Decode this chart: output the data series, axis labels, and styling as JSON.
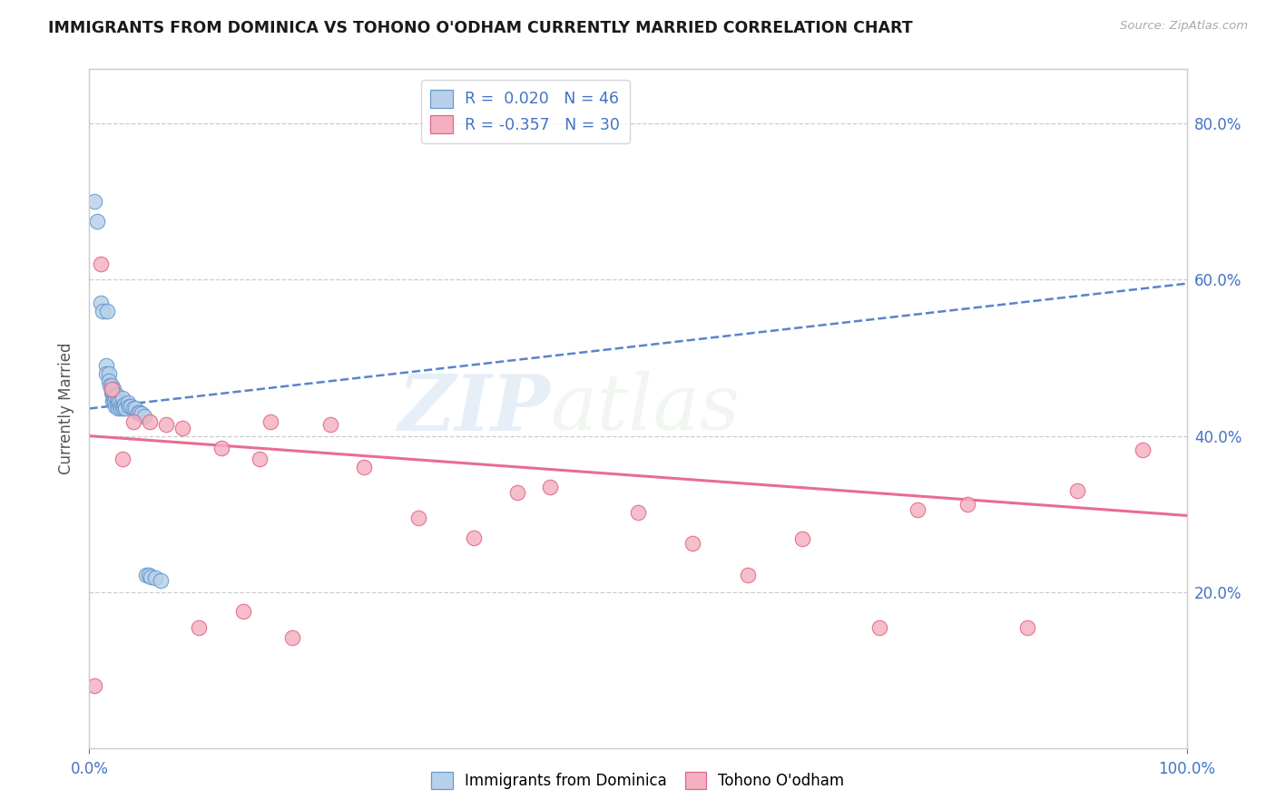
{
  "title": "IMMIGRANTS FROM DOMINICA VS TOHONO O'ODHAM CURRENTLY MARRIED CORRELATION CHART",
  "source": "Source: ZipAtlas.com",
  "ylabel": "Currently Married",
  "xlim": [
    0.0,
    1.0
  ],
  "ylim": [
    0.0,
    0.87
  ],
  "ytick_positions": [
    0.2,
    0.4,
    0.6,
    0.8
  ],
  "ytick_labels": [
    "20.0%",
    "40.0%",
    "60.0%",
    "80.0%"
  ],
  "xtick_positions": [
    0.0,
    1.0
  ],
  "xtick_labels": [
    "0.0%",
    "100.0%"
  ],
  "dominica_R": 0.02,
  "dominica_N": 46,
  "tohono_R": -0.357,
  "tohono_N": 30,
  "dominica_face": "#b8d0ea",
  "dominica_edge": "#6699cc",
  "tohono_face": "#f4b0c0",
  "tohono_edge": "#e06888",
  "dominica_line_color": "#4472c4",
  "tohono_line_color": "#e8608a",
  "watermark_zip": "ZIP",
  "watermark_atlas": "atlas",
  "blue_x": [
    0.005,
    0.007,
    0.01,
    0.012,
    0.015,
    0.015,
    0.016,
    0.018,
    0.018,
    0.019,
    0.02,
    0.02,
    0.021,
    0.021,
    0.022,
    0.022,
    0.023,
    0.023,
    0.024,
    0.024,
    0.025,
    0.025,
    0.026,
    0.026,
    0.027,
    0.028,
    0.029,
    0.03,
    0.03,
    0.031,
    0.032,
    0.033,
    0.035,
    0.036,
    0.038,
    0.04,
    0.042,
    0.044,
    0.046,
    0.048,
    0.05,
    0.052,
    0.054,
    0.056,
    0.06,
    0.065
  ],
  "blue_y": [
    0.7,
    0.675,
    0.57,
    0.56,
    0.49,
    0.48,
    0.56,
    0.48,
    0.47,
    0.465,
    0.465,
    0.455,
    0.455,
    0.445,
    0.46,
    0.448,
    0.452,
    0.442,
    0.45,
    0.438,
    0.452,
    0.44,
    0.445,
    0.435,
    0.442,
    0.438,
    0.435,
    0.448,
    0.438,
    0.435,
    0.44,
    0.435,
    0.442,
    0.438,
    0.438,
    0.435,
    0.435,
    0.43,
    0.43,
    0.428,
    0.425,
    0.222,
    0.222,
    0.22,
    0.218,
    0.215
  ],
  "pink_x": [
    0.005,
    0.01,
    0.02,
    0.03,
    0.04,
    0.055,
    0.07,
    0.085,
    0.1,
    0.12,
    0.14,
    0.155,
    0.165,
    0.185,
    0.22,
    0.25,
    0.3,
    0.35,
    0.39,
    0.42,
    0.5,
    0.55,
    0.6,
    0.65,
    0.72,
    0.755,
    0.8,
    0.855,
    0.9,
    0.96
  ],
  "pink_y": [
    0.08,
    0.62,
    0.46,
    0.37,
    0.418,
    0.418,
    0.415,
    0.41,
    0.155,
    0.385,
    0.175,
    0.37,
    0.418,
    0.142,
    0.415,
    0.36,
    0.295,
    0.27,
    0.328,
    0.335,
    0.302,
    0.262,
    0.222,
    0.268,
    0.155,
    0.305,
    0.312,
    0.155,
    0.33,
    0.382
  ],
  "blue_line_x0": 0.0,
  "blue_line_y0": 0.435,
  "blue_line_x1": 1.0,
  "blue_line_y1": 0.595,
  "pink_line_x0": 0.0,
  "pink_line_y0": 0.4,
  "pink_line_x1": 1.0,
  "pink_line_y1": 0.298
}
